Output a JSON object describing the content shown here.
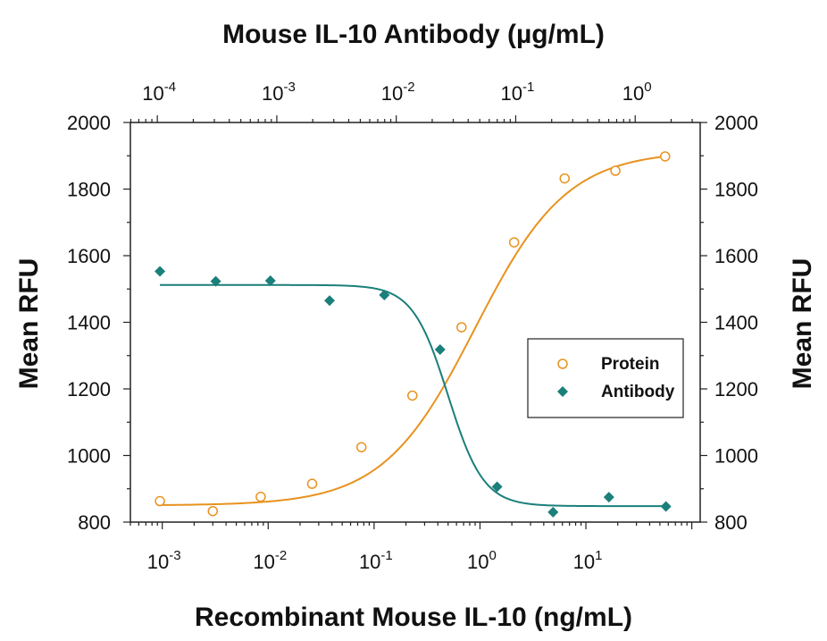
{
  "chart_data": {
    "type": "scatter",
    "title": "Mouse IL-10 Antibody (µg/mL)",
    "xlabel": "Recombinant Mouse IL-10 (ng/mL)",
    "ylabel": "Mean RFU",
    "ylabel_right": "Mean RFU",
    "x_scale": "log",
    "xlim": [
      0.0005,
      120
    ],
    "ylim": [
      800,
      2000
    ],
    "x_ticks_bottom": [
      {
        "value": 0.001,
        "base": "10",
        "exp": "-3"
      },
      {
        "value": 0.01,
        "base": "10",
        "exp": "-2"
      },
      {
        "value": 0.1,
        "base": "10",
        "exp": "-1"
      },
      {
        "value": 1,
        "base": "10",
        "exp": "0"
      },
      {
        "value": 10,
        "base": "10",
        "exp": "1"
      }
    ],
    "x_ticks_top": [
      {
        "value": 0.0001,
        "base": "10",
        "exp": "-4"
      },
      {
        "value": 0.001,
        "base": "10",
        "exp": "-3"
      },
      {
        "value": 0.01,
        "base": "10",
        "exp": "-2"
      },
      {
        "value": 0.1,
        "base": "10",
        "exp": "-1"
      },
      {
        "value": 1,
        "base": "10",
        "exp": "0"
      }
    ],
    "top_xlim": [
      5.95e-05,
      3.5
    ],
    "y_ticks": [
      "800",
      "1000",
      "1200",
      "1400",
      "1600",
      "1800",
      "2000"
    ],
    "legend_position": "right",
    "series": [
      {
        "name": "Protein",
        "color": "#E8921E",
        "marker": "open-circle",
        "x": [
          0.00095,
          0.003,
          0.0085,
          0.026,
          0.076,
          0.23,
          0.67,
          2.1,
          6.3,
          19,
          56
        ],
        "y": [
          863,
          833,
          876,
          915,
          1025,
          1180,
          1385,
          1640,
          1832,
          1855,
          1898
        ],
        "fit": {
          "bottom": 850,
          "top": 1915,
          "ec50": 0.9,
          "hill": 1.0
        }
      },
      {
        "name": "Antibody",
        "color": "#1B7F7A",
        "marker": "filled-diamond",
        "x": [
          0.00095,
          0.0032,
          0.0105,
          0.038,
          0.125,
          0.42,
          1.45,
          4.9,
          16.5,
          57
        ],
        "y": [
          1553,
          1523,
          1525,
          1465,
          1482,
          1318,
          906,
          830,
          875,
          847
        ],
        "fit": {
          "bottom": 848,
          "top": 1512,
          "ec50": 0.5,
          "hill": 2.6
        }
      }
    ]
  }
}
